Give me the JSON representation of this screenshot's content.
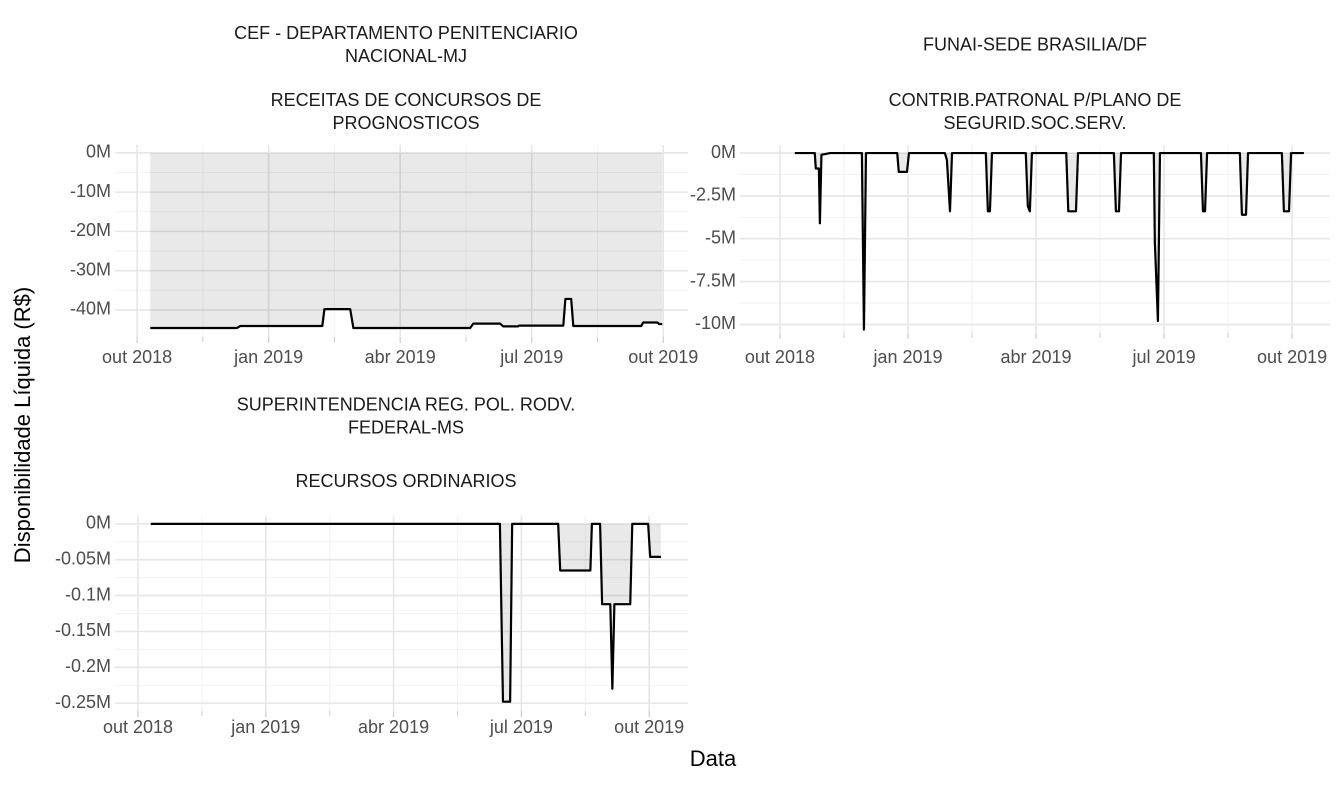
{
  "axis_labels": {
    "x": "Data",
    "y": "Disponibilidade Líquida (R$)"
  },
  "chart_data": [
    {
      "type": "line",
      "title_lines": [
        "CEF - DEPARTAMENTO PENITENCIARIO",
        "NACIONAL-MJ"
      ],
      "subtitle_lines": [
        "RECEITAS DE CONCURSOS DE",
        "PROGNOSTICOS"
      ],
      "xlim": [
        2018.708,
        2019.797
      ],
      "xticks": [
        {
          "value": 2018.75,
          "label": "out 2018"
        },
        {
          "value": 2019.0,
          "label": "jan 2019"
        },
        {
          "value": 2019.25,
          "label": "abr 2019"
        },
        {
          "value": 2019.5,
          "label": "jul 2019"
        },
        {
          "value": 2019.75,
          "label": "out 2019"
        }
      ],
      "ylim": [
        -46.9,
        2
      ],
      "yticks": [
        {
          "value": 0,
          "label": "0M"
        },
        {
          "value": -10,
          "label": "-10M"
        },
        {
          "value": -20,
          "label": "-20M"
        },
        {
          "value": -30,
          "label": "-30M"
        },
        {
          "value": -40,
          "label": "-40M"
        }
      ],
      "grid": true,
      "color": "#000000",
      "area_color": "rgba(0,0,0,0.085)",
      "x": [
        2018.775,
        2018.94,
        2018.946,
        2019.102,
        2019.106,
        2019.155,
        2019.161,
        2019.383,
        2019.389,
        2019.44,
        2019.446,
        2019.474,
        2019.476,
        2019.56,
        2019.564,
        2019.575,
        2019.579,
        2019.708,
        2019.712,
        2019.739,
        2019.742,
        2019.748
      ],
      "values": [
        -44.6,
        -44.6,
        -44.1,
        -44.1,
        -39.8,
        -39.8,
        -44.6,
        -44.6,
        -43.5,
        -43.5,
        -44.2,
        -44.2,
        -44.0,
        -44.0,
        -37.2,
        -37.2,
        -44.1,
        -44.1,
        -43.2,
        -43.2,
        -43.6,
        -43.6
      ]
    },
    {
      "type": "line",
      "title_lines": [
        "FUNAI-SEDE BRASILIA/DF"
      ],
      "subtitle_lines": [
        "CONTRIB.PATRONAL P/PLANO DE",
        "SEGURID.SOC.SERV."
      ],
      "xlim": [
        2018.672,
        2019.824
      ],
      "xticks": [
        {
          "value": 2018.75,
          "label": "out 2018"
        },
        {
          "value": 2019.0,
          "label": "jan 2019"
        },
        {
          "value": 2019.25,
          "label": "abr 2019"
        },
        {
          "value": 2019.5,
          "label": "jul 2019"
        },
        {
          "value": 2019.75,
          "label": "out 2019"
        }
      ],
      "ylim": [
        -10.5,
        0.47
      ],
      "yticks": [
        {
          "value": 0,
          "label": "0M"
        },
        {
          "value": -2.5,
          "label": "-2.5M"
        },
        {
          "value": -5,
          "label": "-5M"
        },
        {
          "value": -7.5,
          "label": "-7.5M"
        },
        {
          "value": -10,
          "label": "-10M"
        }
      ],
      "grid": true,
      "color": "#000000",
      "area_color": "rgba(0,0,0,0.085)",
      "x": [
        2018.779,
        2018.818,
        2018.82,
        2018.826,
        2018.828,
        2018.831,
        2018.848,
        2018.91,
        2018.914,
        2018.918,
        2018.979,
        2018.982,
        2018.998,
        2019.002,
        2019.072,
        2019.076,
        2019.082,
        2019.086,
        2019.152,
        2019.156,
        2019.16,
        2019.164,
        2019.23,
        2019.234,
        2019.238,
        2019.242,
        2019.309,
        2019.313,
        2019.328,
        2019.332,
        2019.402,
        2019.406,
        2019.412,
        2019.416,
        2019.48,
        2019.482,
        2019.488,
        2019.492,
        2019.572,
        2019.576,
        2019.58,
        2019.584,
        2019.648,
        2019.652,
        2019.66,
        2019.664,
        2019.73,
        2019.734,
        2019.744,
        2019.748,
        2019.773
      ],
      "values": [
        0,
        0,
        -0.9,
        -0.9,
        -4.1,
        -0.1,
        0,
        0,
        -10.3,
        0,
        0,
        -1.1,
        -1.1,
        0,
        0,
        -0.4,
        -3.4,
        0,
        0,
        -3.4,
        -3.4,
        0,
        0,
        -3.1,
        -3.4,
        0,
        0,
        -3.4,
        -3.4,
        0,
        0,
        -3.4,
        -3.4,
        0,
        0,
        -5.2,
        -9.8,
        0,
        0,
        -3.4,
        -3.4,
        0,
        0,
        -3.6,
        -3.6,
        0,
        0,
        -3.4,
        -3.4,
        0,
        0
      ]
    },
    {
      "type": "line",
      "title_lines": [
        "SUPERINTENDENCIA REG. POL. RODV.",
        "FEDERAL-MS"
      ],
      "subtitle_lines": [
        "RECURSOS ORDINARIOS"
      ],
      "xlim": [
        2018.705,
        2019.826
      ],
      "xticks": [
        {
          "value": 2018.75,
          "label": "out 2018"
        },
        {
          "value": 2019.0,
          "label": "jan 2019"
        },
        {
          "value": 2019.25,
          "label": "abr 2019"
        },
        {
          "value": 2019.5,
          "label": "jul 2019"
        },
        {
          "value": 2019.75,
          "label": "out 2019"
        }
      ],
      "ylim": [
        -0.261,
        0.011
      ],
      "yticks": [
        {
          "value": 0,
          "label": "0M"
        },
        {
          "value": -0.05,
          "label": "-0.05M"
        },
        {
          "value": -0.1,
          "label": "-0.1M"
        },
        {
          "value": -0.15,
          "label": "-0.15M"
        },
        {
          "value": -0.2,
          "label": "-0.2M"
        },
        {
          "value": -0.25,
          "label": "-0.25M"
        }
      ],
      "grid": true,
      "color": "#000000",
      "area_color": "rgba(0,0,0,0.085)",
      "x": [
        2018.775,
        2019.458,
        2019.464,
        2019.478,
        2019.482,
        2019.572,
        2019.576,
        2019.635,
        2019.638,
        2019.654,
        2019.658,
        2019.674,
        2019.678,
        2019.682,
        2019.713,
        2019.717,
        2019.748,
        2019.752,
        2019.773
      ],
      "values": [
        0,
        0,
        -0.248,
        -0.248,
        0,
        0,
        -0.065,
        -0.065,
        0,
        0,
        -0.112,
        -0.112,
        -0.23,
        -0.112,
        -0.112,
        0,
        0,
        -0.046,
        -0.046
      ]
    }
  ]
}
